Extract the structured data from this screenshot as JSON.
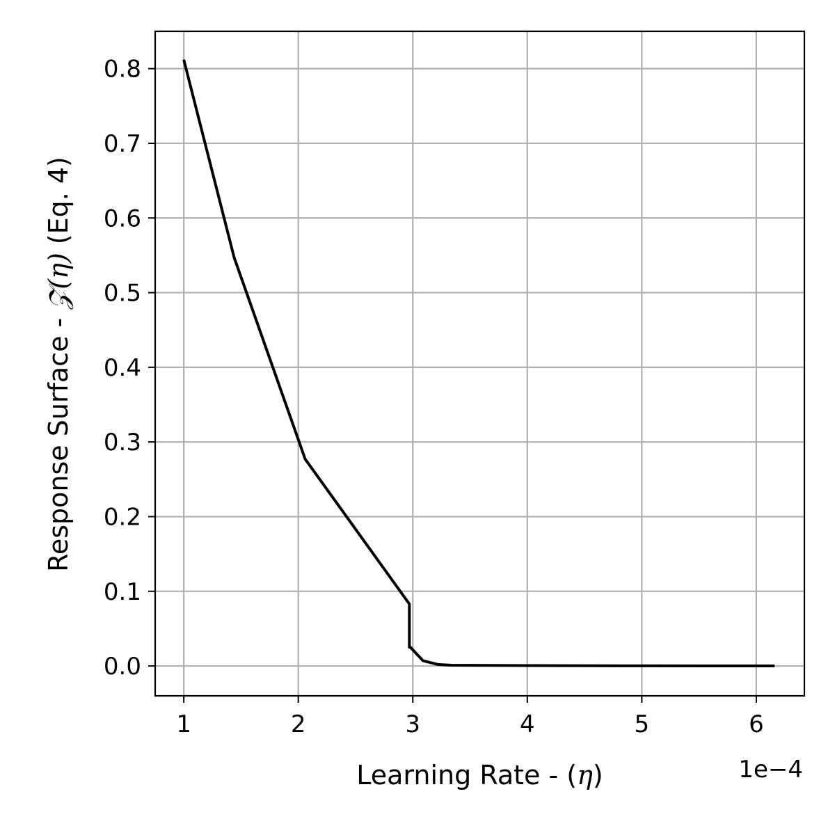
{
  "chart_data": {
    "type": "line",
    "xlabel": {
      "prefix": "Learning Rate - (",
      "symbol": "η",
      "suffix": ")"
    },
    "ylabel": {
      "prefix": "Response Surface - ",
      "symbol": "𝒵(η)",
      "suffix": " (Eq. 4)"
    },
    "x_offset_label": "1e−4",
    "xlim": [
      0.75,
      6.42
    ],
    "ylim": [
      -0.04,
      0.85
    ],
    "xticks": [
      1,
      2,
      3,
      4,
      5,
      6
    ],
    "xtick_labels": [
      "1",
      "2",
      "3",
      "4",
      "5",
      "6"
    ],
    "yticks": [
      0.0,
      0.1,
      0.2,
      0.3,
      0.4,
      0.5,
      0.6,
      0.7,
      0.8
    ],
    "ytick_labels": [
      "0.0",
      "0.1",
      "0.2",
      "0.3",
      "0.4",
      "0.5",
      "0.6",
      "0.7",
      "0.8"
    ],
    "grid": true,
    "series": [
      {
        "color": "#000000",
        "x": [
          1.0,
          1.44,
          2.06,
          2.97,
          2.97,
          2.98,
          3.09,
          3.22,
          3.34,
          4.0,
          5.0,
          6.16
        ],
        "y": [
          0.812,
          0.547,
          0.277,
          0.083,
          0.025,
          0.025,
          0.007,
          0.002,
          0.001,
          0.0005,
          0.0002,
          0.0001
        ]
      }
    ]
  }
}
